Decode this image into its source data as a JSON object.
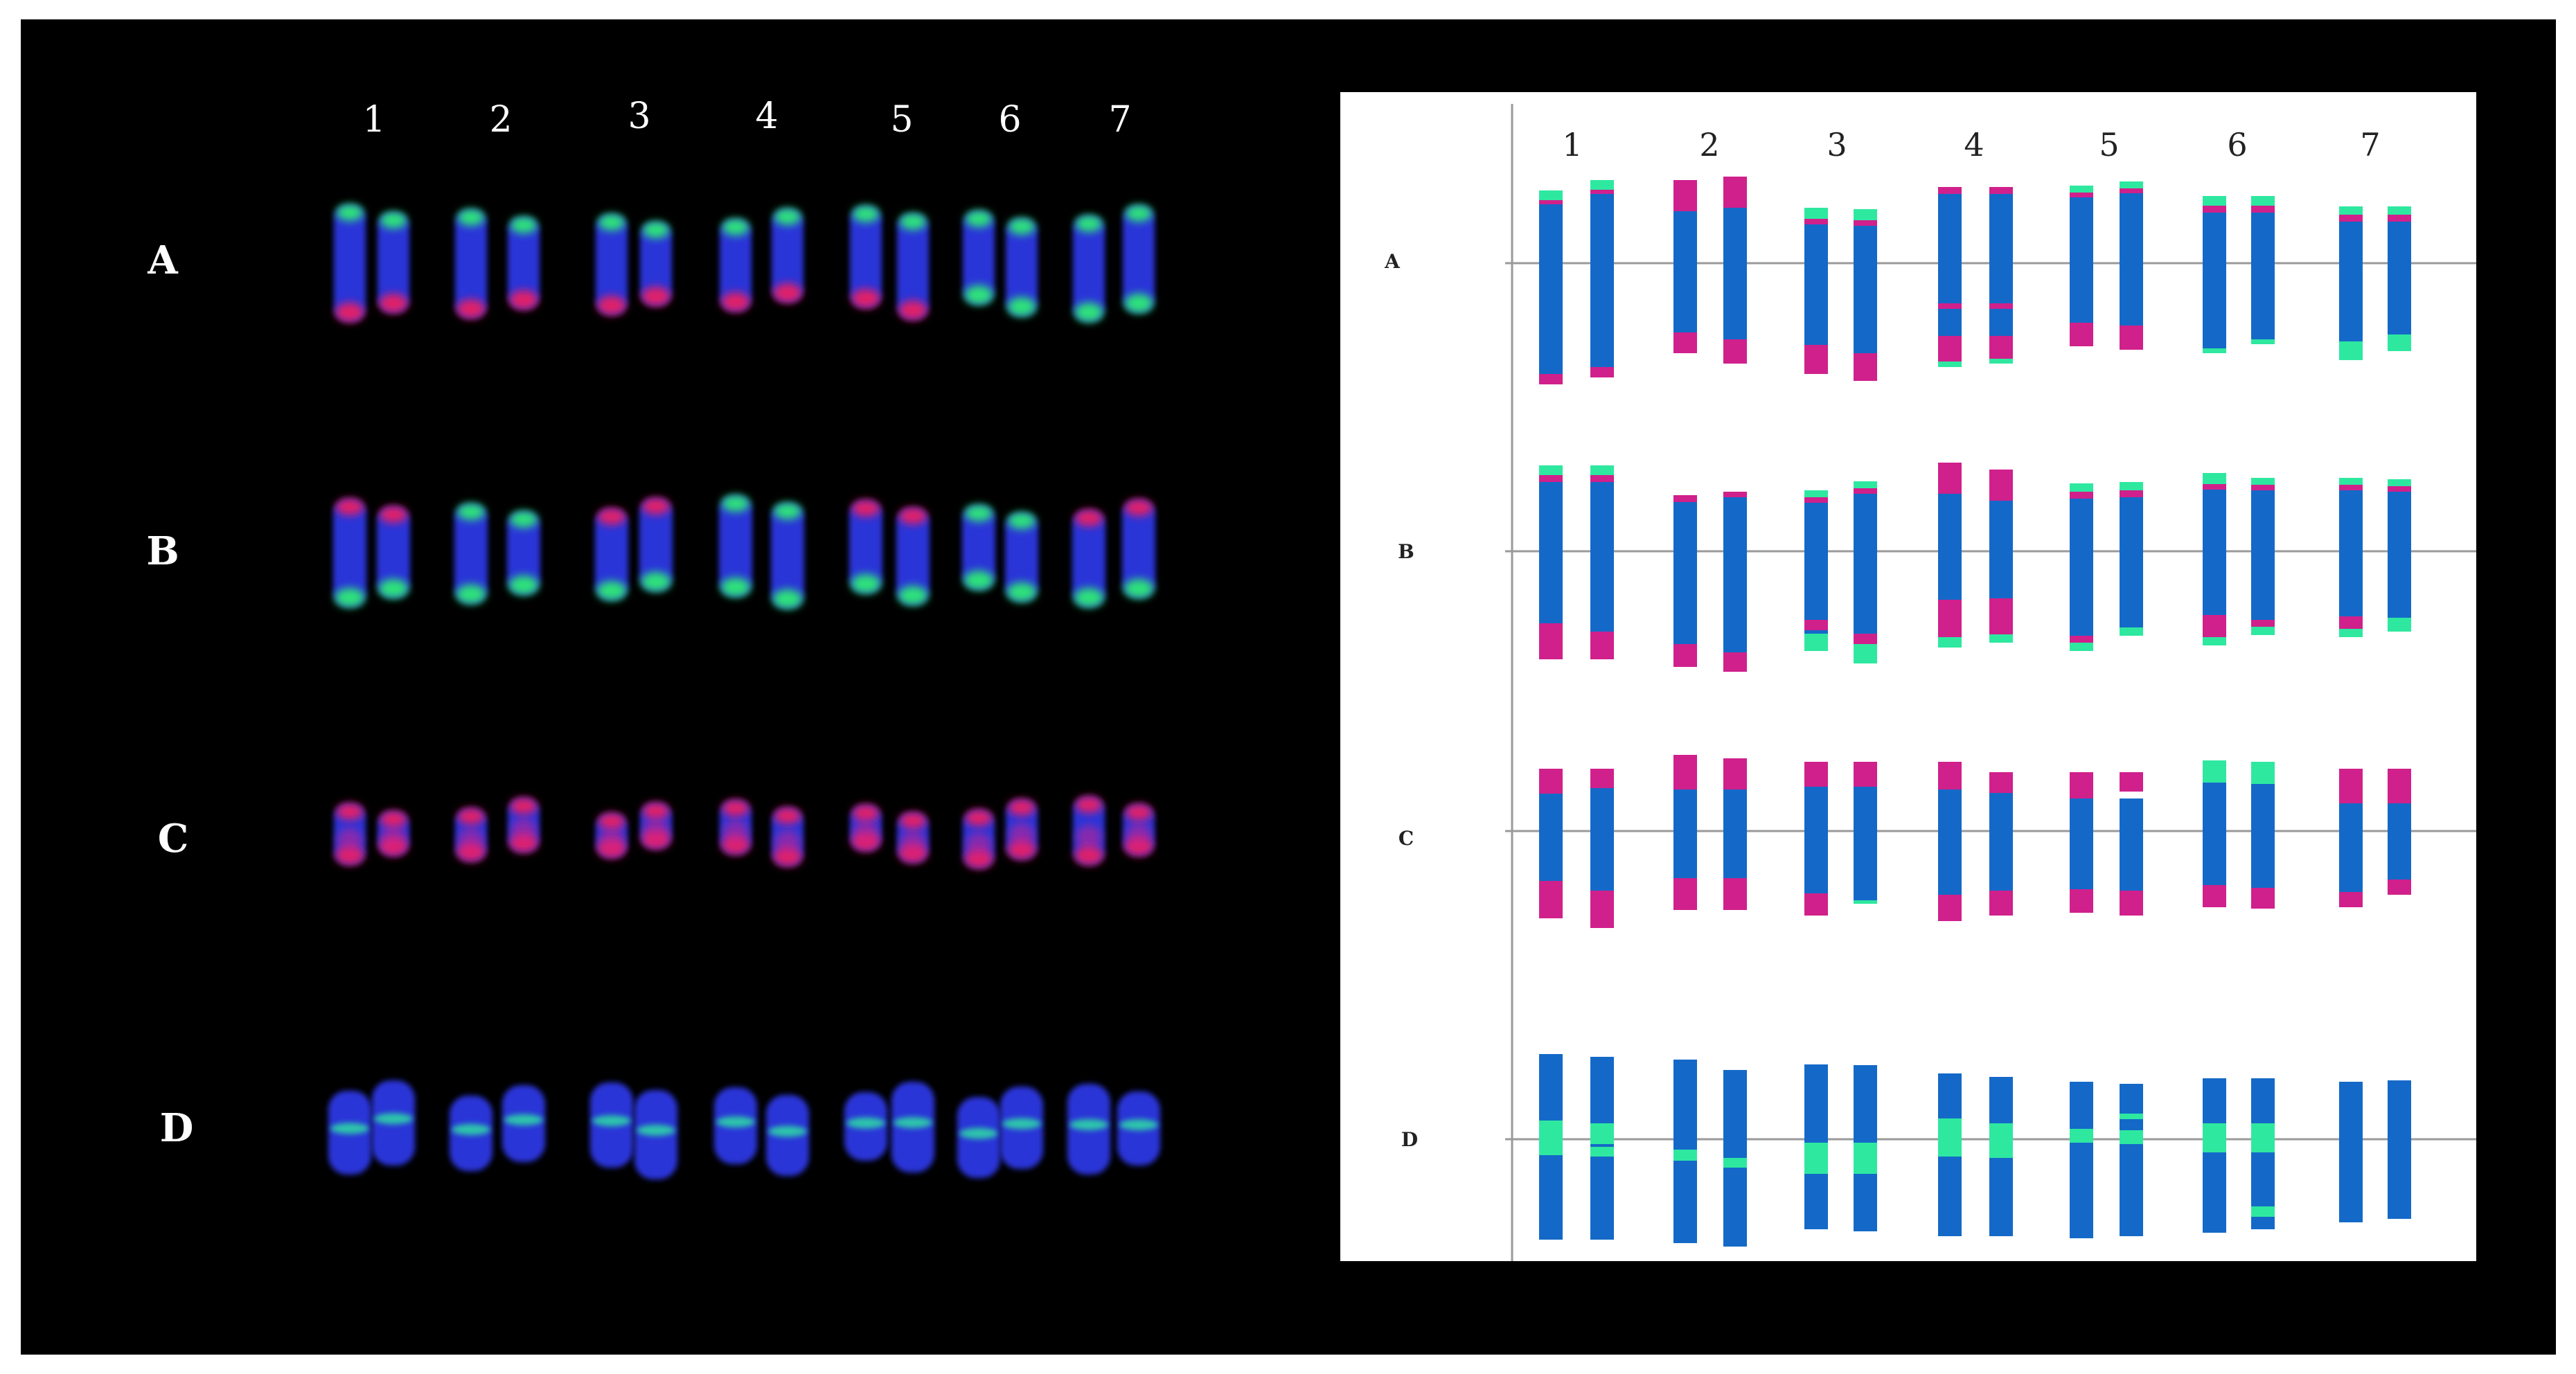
{
  "figure": {
    "colors": {
      "background": "#000000",
      "ideogram_panel_bg": "#ffffff",
      "dapi_blue": "#2a35d8",
      "ideogram_blue": "#1469c8",
      "signal_magenta": "#d0208c",
      "signal_green": "#2ee8a0",
      "probe_red": "#ff1f57",
      "probe_green": "#2dff6a",
      "line": "#9a9a9a"
    },
    "photo_panel": {
      "column_labels": [
        "1",
        "2",
        "3",
        "4",
        "5",
        "6",
        "7"
      ],
      "row_labels": [
        "A",
        "B",
        "C",
        "D"
      ]
    },
    "ideogram_panel": {
      "column_labels": [
        "1",
        "2",
        "3",
        "4",
        "5",
        "6",
        "7"
      ],
      "row_labels": [
        "A",
        "B",
        "C",
        "D"
      ]
    }
  }
}
